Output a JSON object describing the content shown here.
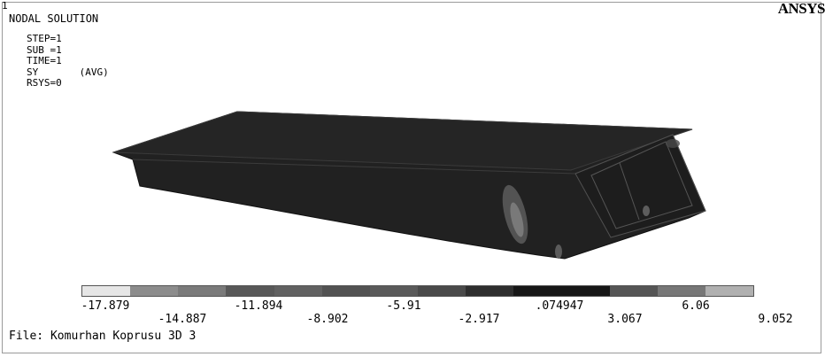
{
  "window_number": "1",
  "title": "NODAL SOLUTION",
  "params": [
    "STEP=1",
    "SUB =1",
    "TIME=1",
    "SY       (AVG)",
    "RSYS=0"
  ],
  "brand": "ANSYS",
  "legend": {
    "colors": [
      "#e6e6e6",
      "#8c8c8c",
      "#7a7a7a",
      "#585858",
      "#616161",
      "#525252",
      "#5a5a5a",
      "#4a4a4a",
      "#2e2e2e",
      "#161616",
      "#161616",
      "#555555",
      "#777777",
      "#b0b0b0"
    ],
    "ticks_top": [
      "-17.879",
      "-11.894",
      "-5.91",
      ".074947",
      "6.06"
    ],
    "ticks_bottom": [
      "-14.887",
      "-8.902",
      "-2.917",
      "3.067",
      "9.052"
    ]
  },
  "footer": "File: Komurhan Koprusu 3D 3",
  "colors": {
    "model": "#212121",
    "edge": "#6a6a6a"
  }
}
